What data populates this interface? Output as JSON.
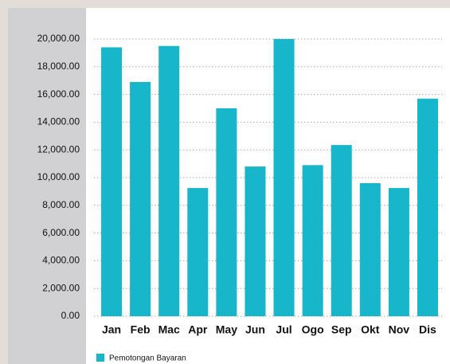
{
  "chart_data": {
    "type": "bar",
    "categories": [
      "Jan",
      "Feb",
      "Mac",
      "Apr",
      "May",
      "Jun",
      "Jul",
      "Ogo",
      "Sep",
      "Okt",
      "Nov",
      "Dis"
    ],
    "series": [
      {
        "name": "Pemotongan Bayaran",
        "color": "#17b6ca",
        "values": [
          19400,
          16900,
          19500,
          9250,
          15000,
          10800,
          20000,
          10900,
          12350,
          9600,
          9250,
          15700
        ]
      }
    ],
    "ylim": [
      0,
      20000
    ],
    "yticks": [
      {
        "value": 0,
        "label": "0.00"
      },
      {
        "value": 2000,
        "label": "2,000.00"
      },
      {
        "value": 4000,
        "label": "4,000.00"
      },
      {
        "value": 6000,
        "label": "6,000.00"
      },
      {
        "value": 8000,
        "label": "8,000.00"
      },
      {
        "value": 10000,
        "label": "10,000.00"
      },
      {
        "value": 12000,
        "label": "12,000.00"
      },
      {
        "value": 14000,
        "label": "14,000.00"
      },
      {
        "value": 16000,
        "label": "16,000.00"
      },
      {
        "value": 18000,
        "label": "18,000.00"
      },
      {
        "value": 20000,
        "label": "20,000.00"
      }
    ],
    "grid": true,
    "legend": "bottom-left"
  }
}
